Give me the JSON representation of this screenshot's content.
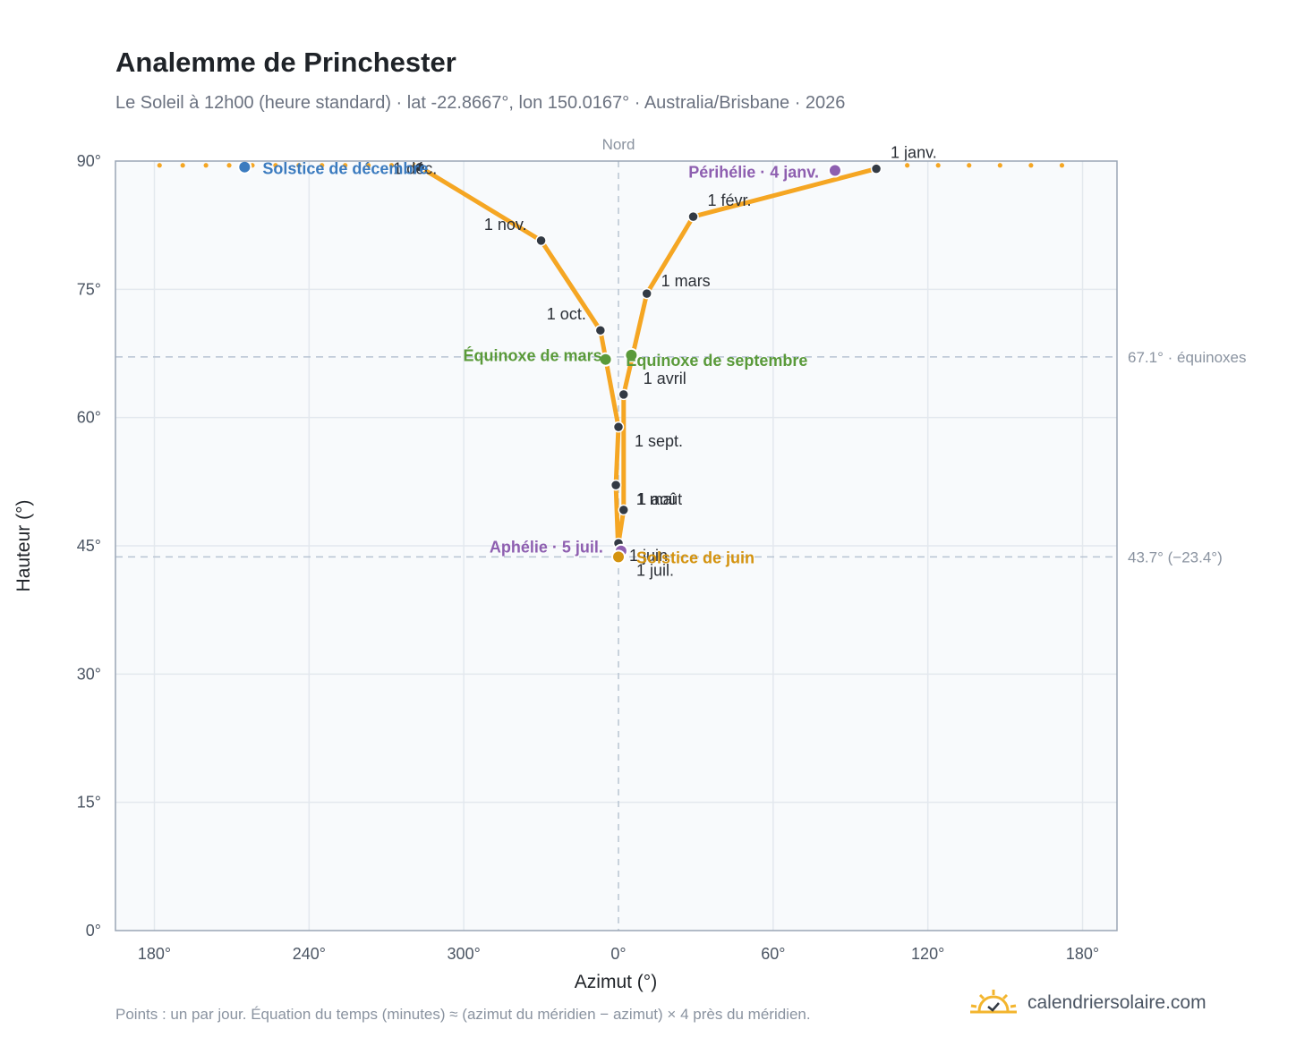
{
  "header": {
    "title": "Analemme de Princhester",
    "subtitle": "Le Soleil à 12h00 (heure standard) · lat -22.8667°, lon 150.0167° · Australia/Brisbane · 2026"
  },
  "footer": {
    "note": "Points : un par jour. Équation du temps (minutes) ≈ (azimut du méridien − azimut) × 4 près du méridien.",
    "brand": "calendriersolaire.com"
  },
  "colors": {
    "curve": "#f5a623",
    "month_marker": "#333a44",
    "solstice_dec": "#3b7bbf",
    "solstice_jun": "#d4930f",
    "equinox": "#5a9a3a",
    "apsis": "#8e5fb0",
    "reference_line": "#b8c4d2",
    "plot_bg": "#f8fafc",
    "grid": "#e3e8ee",
    "frame": "#9aa6b5"
  },
  "chart_data": {
    "type": "scatter",
    "xlabel": "Azimut (°)",
    "ylabel": "Hauteur (°)",
    "x_axis_order": "Sud à gauche et à droite, Nord au centre",
    "x_ticks": [
      "180°",
      "240°",
      "300°",
      "0°",
      "60°",
      "120°",
      "180°"
    ],
    "y_ticks": [
      "0°",
      "15°",
      "30°",
      "45°",
      "60°",
      "75°",
      "90°"
    ],
    "ylim": [
      0,
      90
    ],
    "grid": true,
    "north_label": "Nord",
    "reference_lines": [
      {
        "altitude": 67.1,
        "label": "67.1° · équinoxes"
      },
      {
        "altitude": 43.7,
        "label": "43.7° (−23.4°)"
      }
    ],
    "analemma_points": [
      {
        "date": "1 janv.",
        "azimuth": 100,
        "altitude": 89.1
      },
      {
        "date": "1 févr.",
        "azimuth": 29,
        "altitude": 83.5
      },
      {
        "date": "1 mars",
        "azimuth": 11,
        "altitude": 74.5
      },
      {
        "date": "1 avril",
        "azimuth": 2,
        "altitude": 62.7
      },
      {
        "date": "1 mai",
        "azimuth": 2,
        "altitude": 49.2
      },
      {
        "date": "1 juin",
        "azimuth": 0,
        "altitude": 45.3
      },
      {
        "date": "1 juil.",
        "azimuth": 0,
        "altitude": 43.8
      },
      {
        "date": "1 août",
        "azimuth": 359,
        "altitude": 52.1
      },
      {
        "date": "1 sept.",
        "azimuth": 0,
        "altitude": 58.9
      },
      {
        "date": "1 oct.",
        "azimuth": 353,
        "altitude": 70.2
      },
      {
        "date": "1 nov.",
        "azimuth": 330,
        "altitude": 80.7
      },
      {
        "date": "1 déc.",
        "azimuth": 283,
        "altitude": 89.3
      }
    ],
    "events": [
      {
        "label": "Solstice de décembre",
        "azimuth": 215,
        "altitude": 89.3,
        "color": "#3b7bbf"
      },
      {
        "label": "Périhélie · 4 janv.",
        "azimuth": 84,
        "altitude": 88.9,
        "color": "#8e5fb0"
      },
      {
        "label": "Équinoxe de mars",
        "azimuth": 355,
        "altitude": 66.8,
        "color": "#5a9a3a"
      },
      {
        "label": "Équinoxe de septembre",
        "azimuth": 5,
        "altitude": 67.3,
        "color": "#5a9a3a"
      },
      {
        "label": "Aphélie · 5 juil.",
        "azimuth": 1,
        "altitude": 44.4,
        "color": "#8e5fb0"
      },
      {
        "label": "Solstice de juin",
        "azimuth": 0,
        "altitude": 43.7,
        "color": "#d4930f"
      }
    ]
  }
}
